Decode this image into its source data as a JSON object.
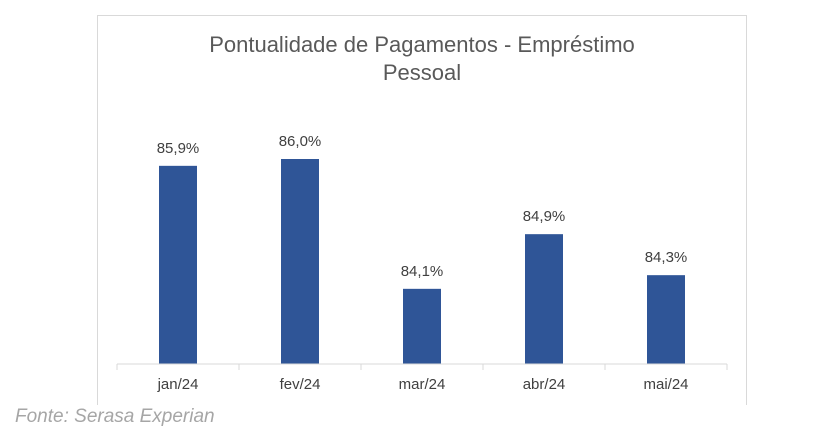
{
  "chart_data": {
    "type": "bar",
    "title": "Pontualidade de Pagamentos - Empréstimo Pessoal",
    "title_lines": [
      "Pontualidade de Pagamentos - Empréstimo",
      "Pessoal"
    ],
    "categories": [
      "jan/24",
      "fev/24",
      "mar/24",
      "abr/24",
      "mai/24"
    ],
    "values": [
      85.9,
      86.0,
      84.1,
      84.9,
      84.3
    ],
    "value_labels": [
      "85,9%",
      "86,0%",
      "84,1%",
      "84,9%",
      "84,3%"
    ],
    "ylim": [
      83.0,
      86.6
    ],
    "bar_color": "#2f5597",
    "grid": false,
    "legend": "none"
  },
  "source": "Fonte: Serasa Experian"
}
